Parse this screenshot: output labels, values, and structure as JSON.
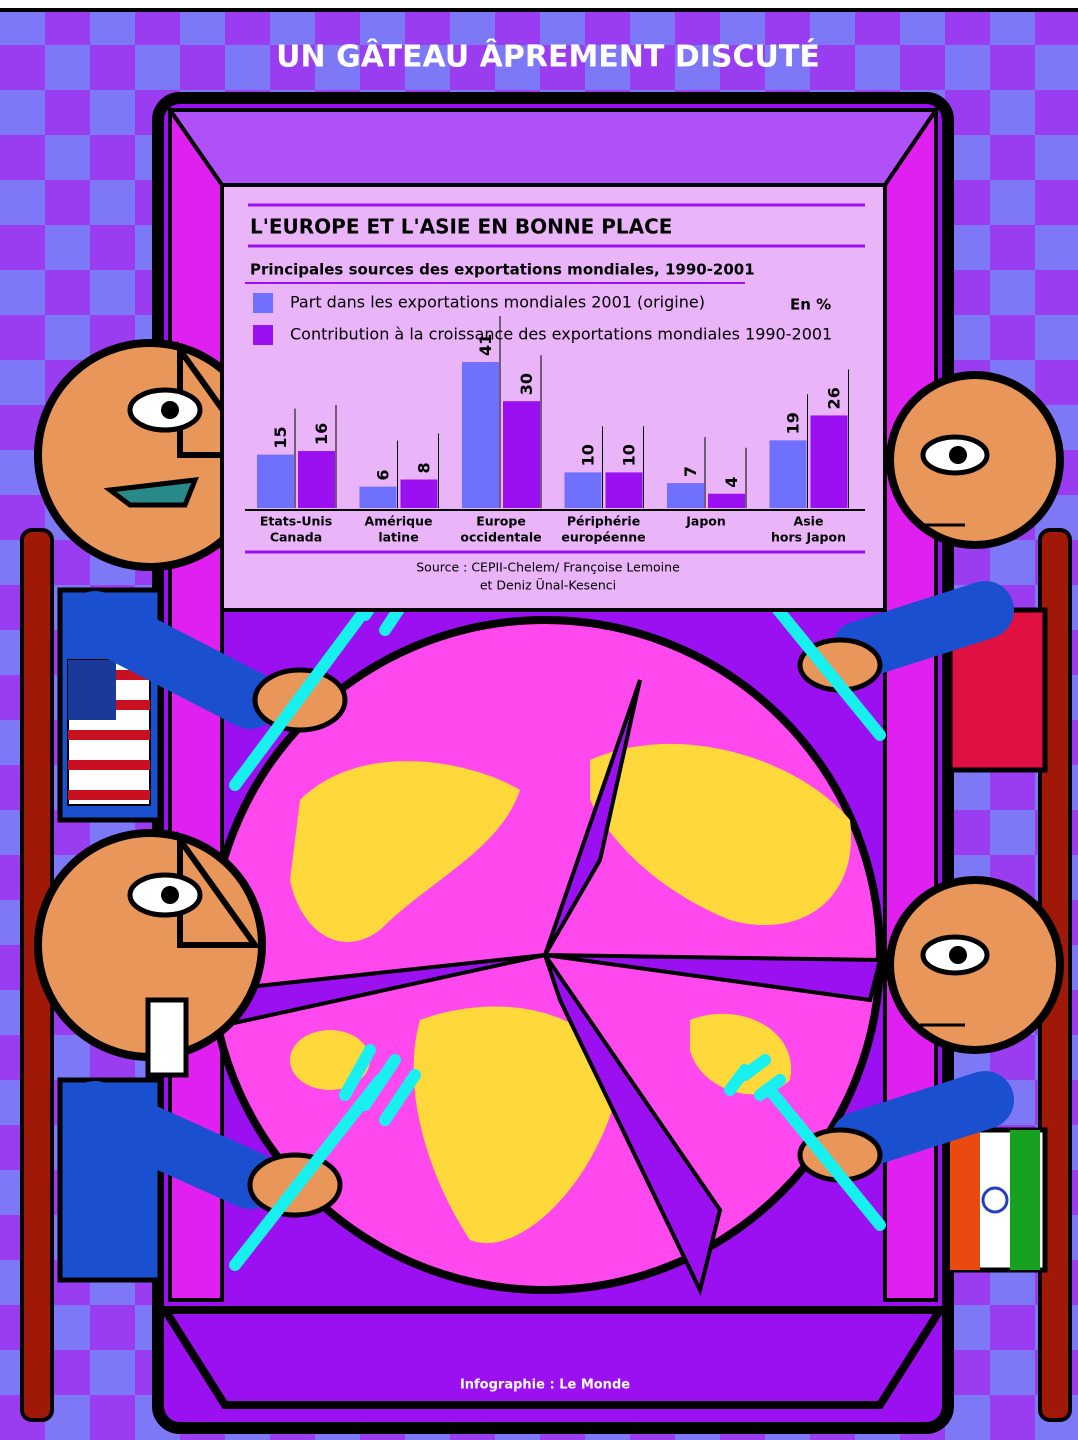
{
  "header": {
    "title": "UN GÂTEAU ÂPREMENT DISCUTÉ"
  },
  "credit": "Infographie : Le Monde",
  "chart_data": {
    "type": "bar",
    "title": "L'EUROPE ET L'ASIE EN BONNE PLACE",
    "subtitle": "Principales sources des exportations mondiales, 1990-2001",
    "unit": "En %",
    "categories": [
      [
        "Etats-Unis",
        "Canada"
      ],
      [
        "Amérique",
        "latine"
      ],
      [
        "Europe",
        "occidentale"
      ],
      [
        "Périphérie",
        "européenne"
      ],
      [
        "Japon"
      ],
      [
        "Asie",
        "hors Japon"
      ]
    ],
    "series": [
      {
        "name": "Part dans les exportations mondiales 2001 (origine)",
        "color": "#7070ff",
        "values": [
          15,
          6,
          41,
          10,
          7,
          19
        ]
      },
      {
        "name": "Contribution à la croissance des exportations mondiales 1990-2001",
        "color": "#9a10f0",
        "values": [
          16,
          8,
          30,
          10,
          4,
          26
        ]
      }
    ],
    "source": [
      "Source : CEPII-Chelem/ Françoise Lemoine",
      "et Deniz Ünal-Kesenci"
    ]
  }
}
